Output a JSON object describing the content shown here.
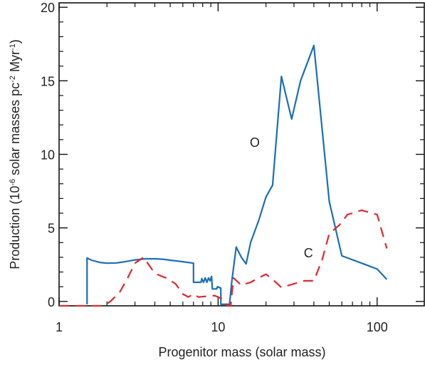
{
  "chart_data": {
    "type": "line",
    "xscale": "log",
    "xlim": [
      1,
      200
    ],
    "ylim": [
      -0.3,
      20.3
    ],
    "xlabel": "Progenitor mass (solar mass)",
    "ylabel_prefix": "Production (10",
    "ylabel_exp1": "-6",
    "ylabel_mid": " solar masses pc",
    "ylabel_exp2": "-2",
    "ylabel_mid2": " Myr",
    "ylabel_exp3": "-1",
    "ylabel_suffix": ")",
    "x_ticks": [
      {
        "value": 1,
        "label": "1"
      },
      {
        "value": 10,
        "label": "10"
      },
      {
        "value": 100,
        "label": "100"
      }
    ],
    "y_ticks": [
      {
        "value": 0,
        "label": "0"
      },
      {
        "value": 5,
        "label": "5"
      },
      {
        "value": 10,
        "label": "10"
      },
      {
        "value": 15,
        "label": "15"
      },
      {
        "value": 20,
        "label": "20"
      }
    ],
    "grid": false,
    "series": [
      {
        "name": "O",
        "color": "#1a6fb4",
        "dash": "solid",
        "label_at": {
          "x": 17,
          "y": 10.5
        },
        "points": [
          [
            1.5,
            -0.2
          ],
          [
            1.5,
            2.95
          ],
          [
            1.6,
            2.8
          ],
          [
            1.8,
            2.65
          ],
          [
            2.0,
            2.6
          ],
          [
            2.3,
            2.62
          ],
          [
            2.6,
            2.7
          ],
          [
            3.0,
            2.82
          ],
          [
            3.5,
            2.9
          ],
          [
            4.0,
            2.9
          ],
          [
            4.5,
            2.87
          ],
          [
            5.0,
            2.8
          ],
          [
            6.0,
            2.7
          ],
          [
            7.0,
            2.6
          ],
          [
            7.0,
            1.3
          ],
          [
            7.8,
            1.3
          ],
          [
            7.9,
            1.55
          ],
          [
            8.1,
            1.3
          ],
          [
            8.3,
            1.6
          ],
          [
            8.5,
            1.3
          ],
          [
            8.7,
            1.6
          ],
          [
            8.9,
            1.4
          ],
          [
            9.1,
            1.7
          ],
          [
            9.2,
            0.85
          ],
          [
            9.8,
            0.85
          ],
          [
            9.9,
            1.0
          ],
          [
            10.4,
            0.9
          ],
          [
            10.4,
            -0.2
          ],
          [
            11.8,
            -0.2
          ],
          [
            12.2,
            1.4
          ],
          [
            13.0,
            3.7
          ],
          [
            14.0,
            3.0
          ],
          [
            15.0,
            2.55
          ],
          [
            16.0,
            4.0
          ],
          [
            18.0,
            5.5
          ],
          [
            20.0,
            7.1
          ],
          [
            22.0,
            7.9
          ],
          [
            25.0,
            15.3
          ],
          [
            29.0,
            12.4
          ],
          [
            33.0,
            15.0
          ],
          [
            40.0,
            17.4
          ],
          [
            50.0,
            6.8
          ],
          [
            60.0,
            3.1
          ],
          [
            80.0,
            2.6
          ],
          [
            100.0,
            2.2
          ],
          [
            115.0,
            1.5
          ]
        ]
      },
      {
        "name": "C",
        "color": "#e0282d",
        "dash": "dashed",
        "label_at": {
          "x": 37,
          "y": 3.0
        },
        "points": [
          [
            1.0,
            -0.3
          ],
          [
            1.5,
            -0.3
          ],
          [
            1.9,
            -0.3
          ],
          [
            2.1,
            0.0
          ],
          [
            2.4,
            0.6
          ],
          [
            2.7,
            1.6
          ],
          [
            3.0,
            2.6
          ],
          [
            3.4,
            3.0
          ],
          [
            4.0,
            1.9
          ],
          [
            4.7,
            1.6
          ],
          [
            5.4,
            1.2
          ],
          [
            6.0,
            0.5
          ],
          [
            6.5,
            0.3
          ],
          [
            7.0,
            0.5
          ],
          [
            7.5,
            0.3
          ],
          [
            8.5,
            0.35
          ],
          [
            9.5,
            0.4
          ],
          [
            10.5,
            0.2
          ],
          [
            11.5,
            -0.3
          ],
          [
            12.0,
            -0.3
          ],
          [
            12.5,
            1.6
          ],
          [
            14.0,
            1.1
          ],
          [
            16.0,
            1.3
          ],
          [
            18.0,
            1.6
          ],
          [
            20.0,
            1.85
          ],
          [
            22.0,
            1.5
          ],
          [
            25.0,
            0.95
          ],
          [
            30.0,
            1.2
          ],
          [
            35.0,
            1.4
          ],
          [
            40.0,
            1.4
          ],
          [
            45.0,
            2.8
          ],
          [
            50.0,
            4.6
          ],
          [
            58.0,
            5.2
          ],
          [
            65.0,
            5.9
          ],
          [
            80.0,
            6.2
          ],
          [
            100.0,
            5.9
          ],
          [
            115.0,
            3.6
          ]
        ]
      }
    ]
  }
}
